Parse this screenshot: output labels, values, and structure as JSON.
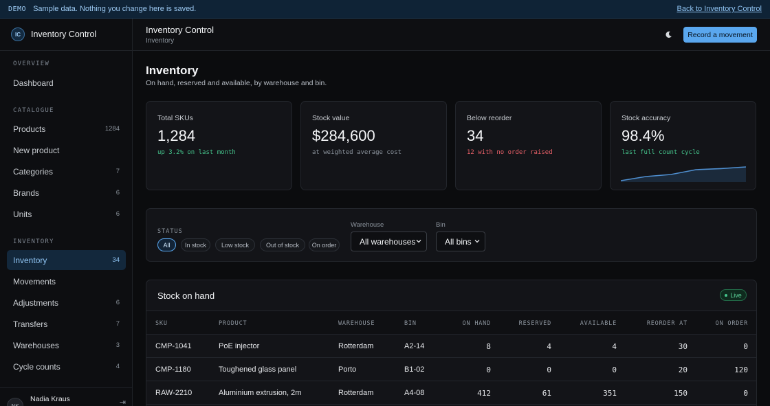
{
  "banner": {
    "tag": "DEMO",
    "message": "Sample data. Nothing you change here is saved.",
    "back_link": "Back to Inventory Control"
  },
  "sidebar": {
    "brand_badge": "IC",
    "brand_name": "Inventory Control",
    "sections": [
      {
        "label": "OVERVIEW",
        "items": [
          {
            "label": "Dashboard",
            "count": ""
          }
        ]
      },
      {
        "label": "CATALOGUE",
        "items": [
          {
            "label": "Products",
            "count": "1284"
          },
          {
            "label": "New product",
            "count": ""
          },
          {
            "label": "Categories",
            "count": "7"
          },
          {
            "label": "Brands",
            "count": "6"
          },
          {
            "label": "Units",
            "count": "6"
          }
        ]
      },
      {
        "label": "INVENTORY",
        "items": [
          {
            "label": "Inventory",
            "count": "34"
          },
          {
            "label": "Movements",
            "count": ""
          },
          {
            "label": "Adjustments",
            "count": "6"
          },
          {
            "label": "Transfers",
            "count": "7"
          },
          {
            "label": "Warehouses",
            "count": "3"
          },
          {
            "label": "Cycle counts",
            "count": "4"
          }
        ]
      }
    ],
    "user": {
      "initials": "NK",
      "name": "Nadia Kraus"
    }
  },
  "header": {
    "title": "Inventory Control",
    "subtitle": "Inventory",
    "theme_icon": "moon-icon",
    "record_button": "Record a movement"
  },
  "page": {
    "title": "Inventory",
    "subtitle": "On hand, reserved and available, by warehouse and bin."
  },
  "kpis": [
    {
      "label": "Total SKUs",
      "value": "1,284",
      "note": "up 3.2% on last month",
      "tone": "up"
    },
    {
      "label": "Stock value",
      "value": "$284,600",
      "note": "at weighted average cost",
      "tone": "neutral"
    },
    {
      "label": "Below reorder",
      "value": "34",
      "note": "12 with no order raised",
      "tone": "down"
    },
    {
      "label": "Stock accuracy",
      "value": "98.4%",
      "note": "last full count cycle",
      "tone": "up",
      "sparkline": [
        0.0,
        0.3,
        0.45,
        0.8,
        0.88,
        1.0
      ],
      "accent": "#4f8fd0"
    }
  ],
  "filters": {
    "status_label": "STATUS",
    "chips": [
      "All",
      "In stock",
      "Low stock",
      "Out of stock",
      "On order"
    ],
    "active_chip": 0,
    "warehouse_label": "Warehouse",
    "warehouse_value": "All warehouses",
    "bin_label": "Bin",
    "bin_value": "All bins"
  },
  "table": {
    "title": "Stock on hand",
    "live_badge": "Live",
    "columns": [
      "SKU",
      "PRODUCT",
      "WAREHOUSE",
      "BIN",
      "ON HAND",
      "RESERVED",
      "AVAILABLE",
      "REORDER AT",
      "ON ORDER"
    ],
    "rows": [
      [
        "CMP-1041",
        "PoE injector",
        "Rotterdam",
        "A2-14",
        "8",
        "4",
        "4",
        "30",
        "0"
      ],
      [
        "CMP-1180",
        "Toughened glass panel",
        "Porto",
        "B1-02",
        "0",
        "0",
        "0",
        "20",
        "120"
      ],
      [
        "RAW-2210",
        "Aluminium extrusion, 2m",
        "Rotterdam",
        "A4-08",
        "412",
        "61",
        "351",
        "150",
        "0"
      ]
    ]
  }
}
